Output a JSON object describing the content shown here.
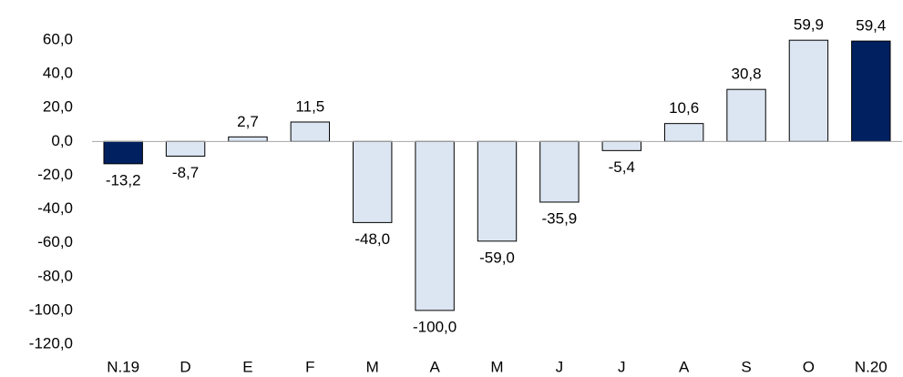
{
  "chart_data": {
    "type": "bar",
    "categories": [
      "N.19",
      "D",
      "E",
      "F",
      "M",
      "A",
      "M",
      "J",
      "J",
      "A",
      "S",
      "O",
      "N.20"
    ],
    "values": [
      -13.2,
      -8.7,
      2.7,
      11.5,
      -48.0,
      -100.0,
      -59.0,
      -35.9,
      -5.4,
      10.6,
      30.8,
      59.9,
      59.4
    ],
    "value_labels": [
      "-13,2",
      "-8,7",
      "2,7",
      "11,5",
      "-48,0",
      "-100,0",
      "-59,0",
      "-35,9",
      "-5,4",
      "10,6",
      "30,8",
      "59,9",
      "59,4"
    ],
    "colors": [
      "#002060",
      "#dce6f2",
      "#dce6f2",
      "#dce6f2",
      "#dce6f2",
      "#dce6f2",
      "#dce6f2",
      "#dce6f2",
      "#dce6f2",
      "#dce6f2",
      "#dce6f2",
      "#dce6f2",
      "#002060"
    ],
    "ylim": [
      -120,
      60
    ],
    "yticks": [
      {
        "value": -120,
        "label": "-120,0"
      },
      {
        "value": -100,
        "label": "-100,0"
      },
      {
        "value": -80,
        "label": "-80,0"
      },
      {
        "value": -60,
        "label": "-60,0"
      },
      {
        "value": -40,
        "label": "-40,0"
      },
      {
        "value": -20,
        "label": "-20,0"
      },
      {
        "value": 0,
        "label": "0,0"
      },
      {
        "value": 20,
        "label": "20,0"
      },
      {
        "value": 40,
        "label": "40,0"
      },
      {
        "value": 60,
        "label": "60,0"
      }
    ],
    "grid": false
  }
}
